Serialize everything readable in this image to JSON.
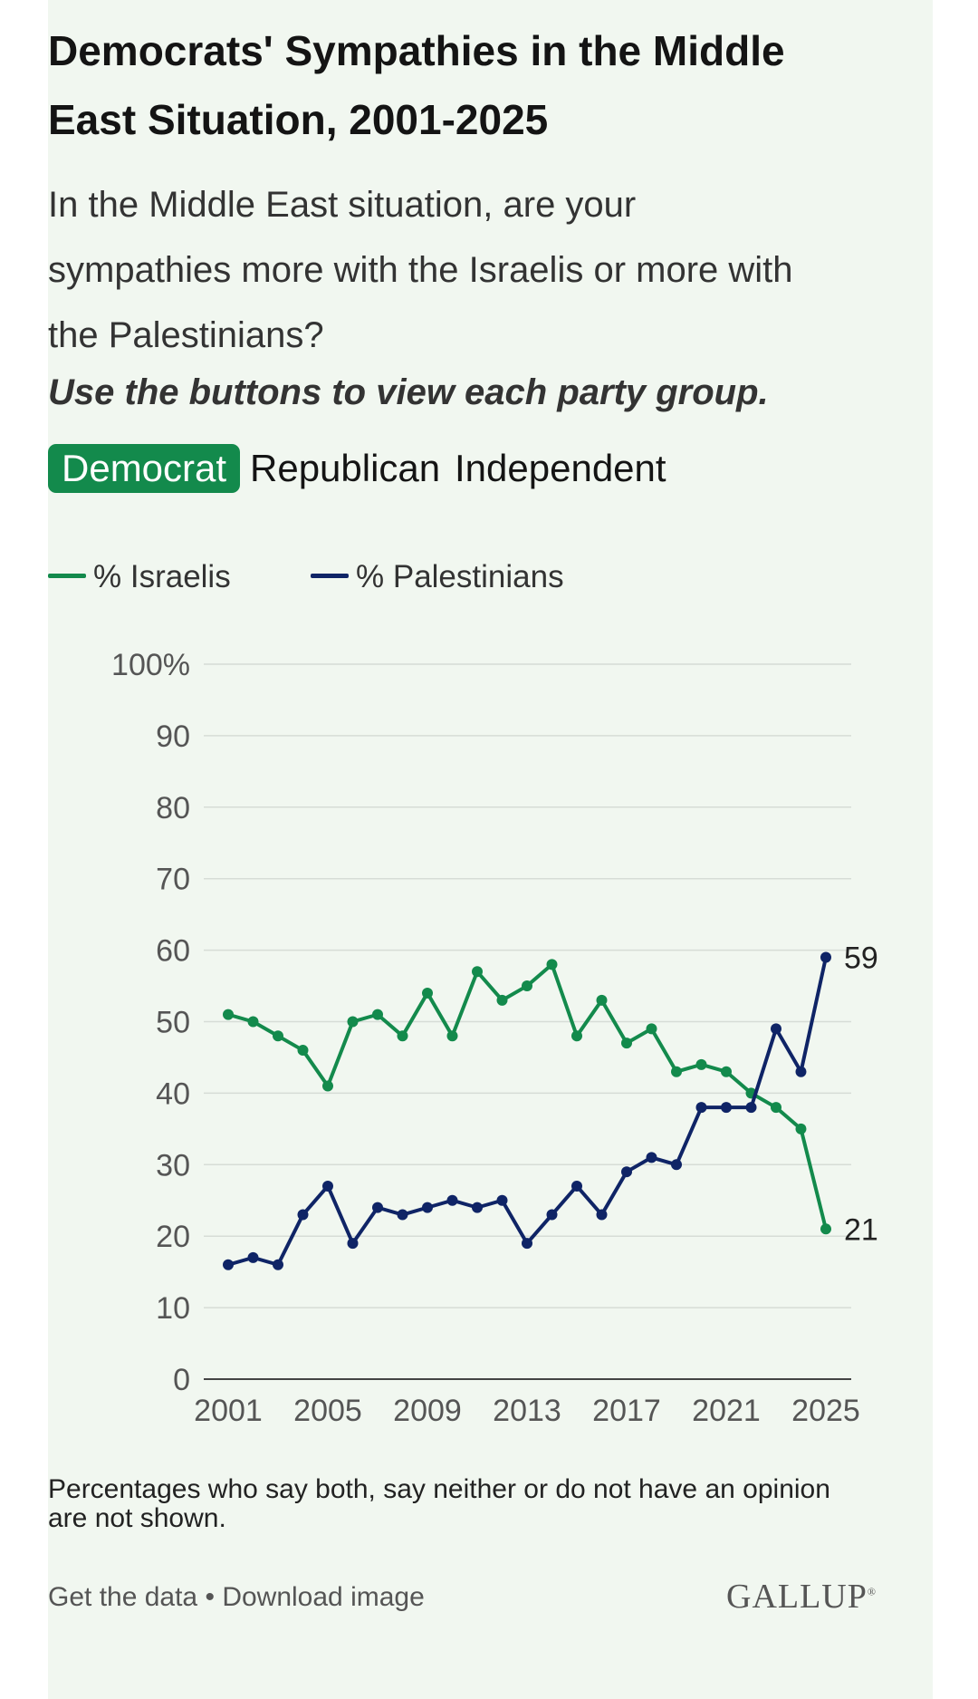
{
  "title": "Democrats' Sympathies in the Middle East Situation, 2001-2025",
  "question": "In the Middle East situation, are your sympathies more with the Israelis or more with the Palestinians?",
  "instruction": "Use the buttons to view each party group.",
  "tabs": [
    {
      "label": "Democrat",
      "active": true
    },
    {
      "label": "Republican",
      "active": false
    },
    {
      "label": "Independent",
      "active": false
    }
  ],
  "colors": {
    "israelis": "#138a4c",
    "palestinians": "#0f2466",
    "active_tab": "#138a4c",
    "background": "#f1f7f0"
  },
  "chart_data": {
    "type": "line",
    "x": [
      2001,
      2002,
      2003,
      2004,
      2005,
      2006,
      2007,
      2008,
      2009,
      2010,
      2011,
      2012,
      2013,
      2014,
      2015,
      2016,
      2017,
      2018,
      2019,
      2020,
      2021,
      2022,
      2023,
      2024,
      2025
    ],
    "series": [
      {
        "name": "% Israelis",
        "color": "#138a4c",
        "values": [
          51,
          50,
          48,
          46,
          41,
          50,
          51,
          48,
          54,
          48,
          57,
          53,
          55,
          58,
          48,
          53,
          47,
          49,
          43,
          44,
          43,
          40,
          38,
          35,
          21
        ]
      },
      {
        "name": "% Palestinians",
        "color": "#0f2466",
        "values": [
          16,
          17,
          16,
          23,
          27,
          19,
          24,
          23,
          24,
          25,
          24,
          25,
          19,
          23,
          27,
          23,
          29,
          31,
          30,
          38,
          38,
          38,
          49,
          43,
          59
        ]
      }
    ],
    "end_labels": [
      "21",
      "59"
    ],
    "y_ticks": [
      "0",
      "10",
      "20",
      "30",
      "40",
      "50",
      "60",
      "70",
      "80",
      "90",
      "100%"
    ],
    "x_ticks": [
      "2001",
      "2005",
      "2009",
      "2013",
      "2017",
      "2021",
      "2025"
    ],
    "xlim": [
      2001,
      2025
    ],
    "ylim": [
      0,
      100
    ],
    "grid": true,
    "legend_position": "top-left"
  },
  "footnote": "Percentages who say both, say neither or do not have an opinion are not shown.",
  "footer": {
    "get_data": "Get the data",
    "separator": " • ",
    "download": "Download image",
    "brand": "GALLUP",
    "brand_mark": "®"
  }
}
